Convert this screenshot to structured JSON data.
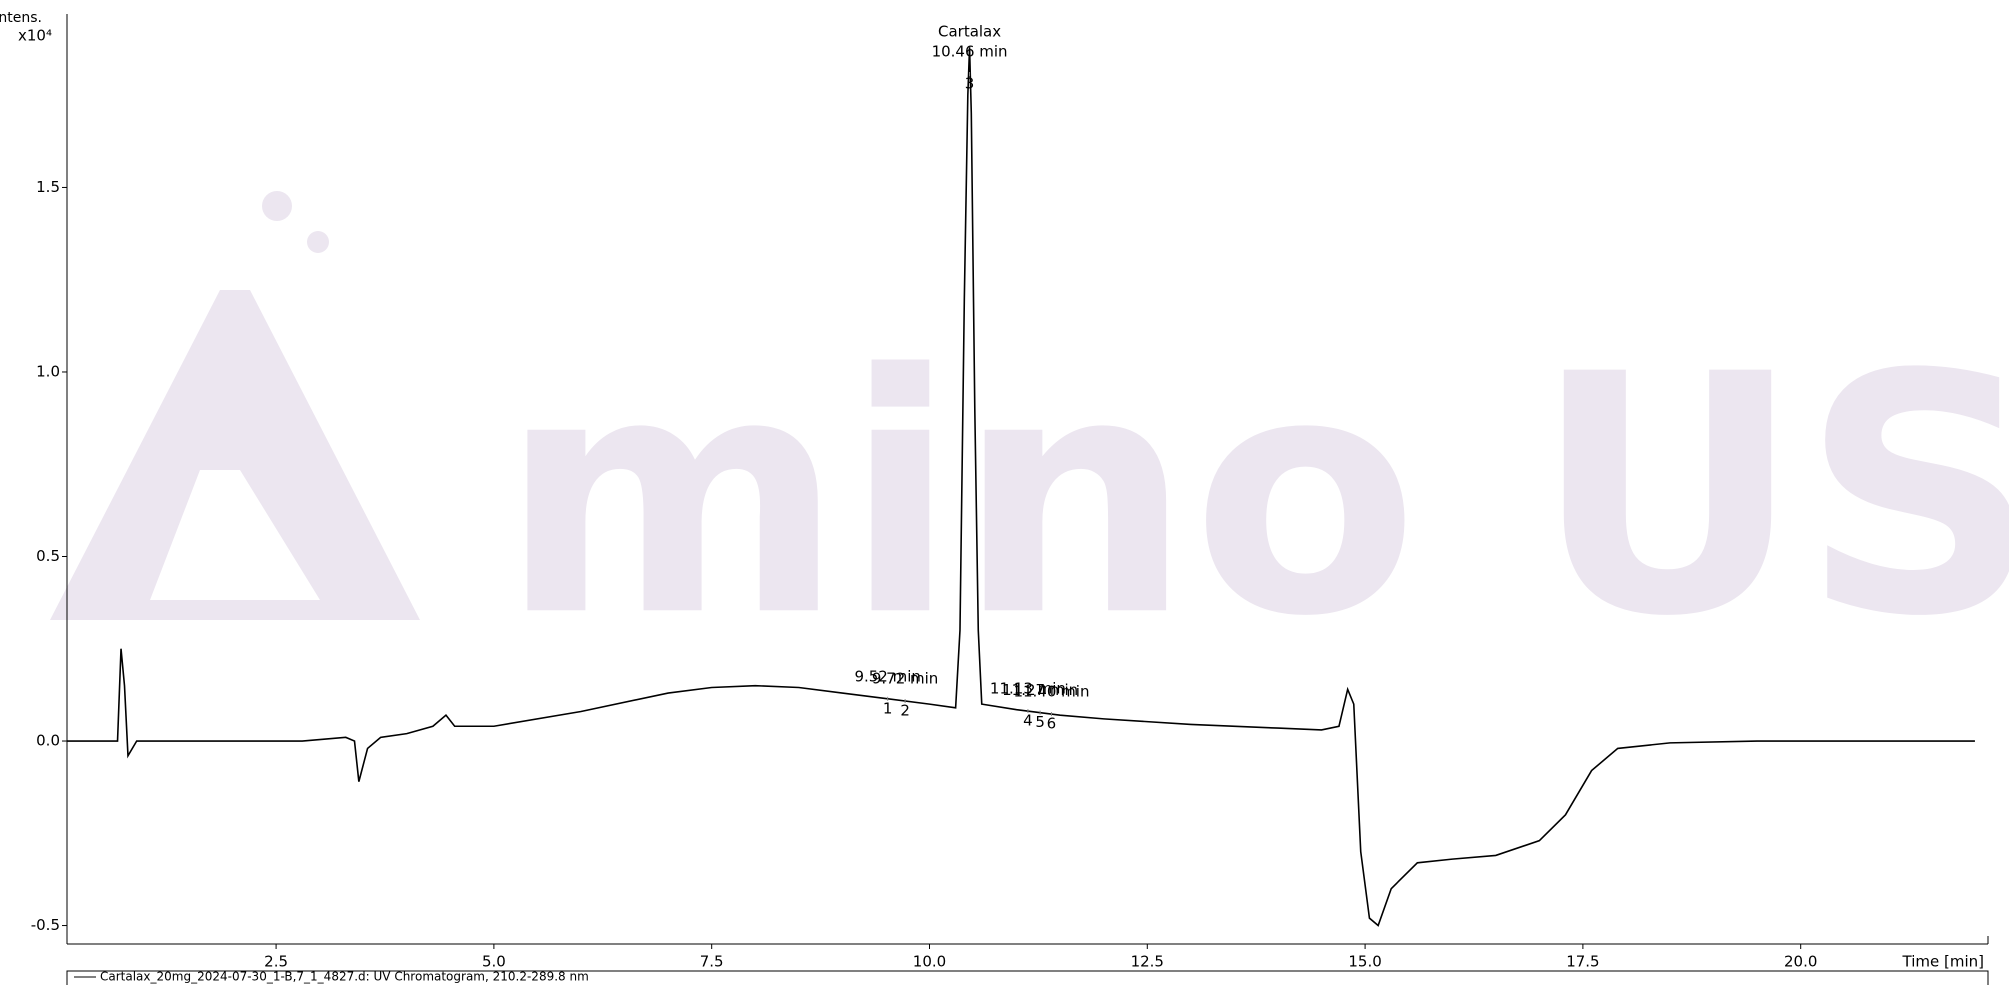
{
  "chart_data": {
    "type": "line",
    "y_axis_label": "Intens.",
    "y_axis_unit": "x10⁴",
    "x_axis_label": "Time [min]",
    "legend": "Cartalax_20mg_2024-07-30_1-B,7_1_4827.d: UV Chromatogram, 210.2-289.8 nm",
    "watermark": "mino USA",
    "xlim": [
      0.1,
      22.15
    ],
    "ylim": [
      -0.55,
      1.97
    ],
    "xticks": [
      2.5,
      {
        "value": 5,
        "label": "5.0"
      },
      7.5,
      {
        "value": 10,
        "label": "10.0"
      },
      12.5,
      {
        "value": 15,
        "label": "15.0"
      },
      17.5,
      {
        "value": 20,
        "label": "20.0"
      }
    ],
    "yticks": [
      {
        "value": -0.5,
        "label": "-0.5"
      },
      {
        "value": 0,
        "label": "0.0"
      },
      0.5,
      {
        "value": 1,
        "label": "1.0"
      },
      1.5
    ],
    "series": [
      {
        "color": "#000000",
        "x": [
          0.1,
          0.6,
          0.68,
          0.72,
          0.76,
          0.8,
          0.9,
          1.2,
          2.0,
          2.8,
          3.3,
          3.4,
          3.45,
          3.55,
          3.7,
          4.0,
          4.3,
          4.45,
          4.55,
          5.0,
          6.0,
          7.0,
          7.5,
          8.0,
          8.5,
          9.0,
          9.5,
          10.0,
          10.3,
          10.35,
          10.4,
          10.44,
          10.46,
          10.48,
          10.52,
          10.56,
          10.6,
          11.0,
          11.5,
          12.0,
          13.0,
          14.0,
          14.5,
          14.7,
          14.8,
          14.87,
          14.95,
          15.05,
          15.15,
          15.3,
          15.6,
          16.0,
          16.5,
          17.0,
          17.3,
          17.6,
          17.9,
          18.5,
          19.5,
          21.0,
          22.0
        ],
        "values": [
          0,
          0,
          0,
          0.25,
          0.15,
          -0.04,
          0,
          0,
          0,
          0,
          0.01,
          0,
          -0.11,
          -0.02,
          0.01,
          0.02,
          0.04,
          0.07,
          0.04,
          0.04,
          0.08,
          0.13,
          0.145,
          0.15,
          0.145,
          0.13,
          0.115,
          0.1,
          0.09,
          0.3,
          1.2,
          1.75,
          1.88,
          1.7,
          0.9,
          0.3,
          0.1,
          0.085,
          0.07,
          0.06,
          0.045,
          0.035,
          0.03,
          0.04,
          0.14,
          0.1,
          -0.3,
          -0.48,
          -0.5,
          -0.4,
          -0.33,
          -0.32,
          -0.31,
          -0.27,
          -0.2,
          -0.08,
          -0.02,
          -0.005,
          0,
          0,
          0
        ]
      }
    ],
    "peaks": [
      {
        "rt": 9.52,
        "rt_label": "9.52 min",
        "number": "1"
      },
      {
        "rt": 9.72,
        "rt_label": "9.72 min",
        "number": "2"
      },
      {
        "rt": 10.46,
        "rt_label": "10.46 min",
        "number": "3",
        "name": "Cartalax"
      },
      {
        "rt": 11.13,
        "rt_label": "11.13 min",
        "number": "4"
      },
      {
        "rt": 11.27,
        "rt_label": "11.27 min",
        "number": "5"
      },
      {
        "rt": 11.4,
        "rt_label": "11.40 min",
        "number": "6"
      }
    ]
  }
}
